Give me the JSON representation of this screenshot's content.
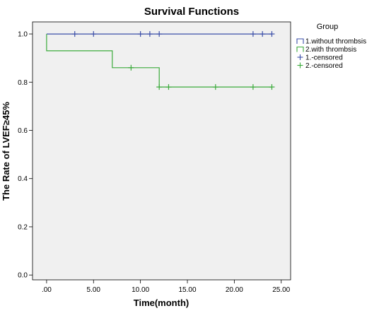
{
  "chart_data": {
    "type": "line",
    "step": true,
    "title": "Survival Functions",
    "xlabel": "Time(month)",
    "ylabel": "The Rate of LVEF≥45%",
    "xlim": [
      -1.5,
      26
    ],
    "ylim": [
      -0.02,
      1.05
    ],
    "xticks": [
      0,
      5,
      10,
      15,
      20,
      25
    ],
    "xtick_labels": [
      ".00",
      "5.00",
      "10.00",
      "15.00",
      "20.00",
      "25.00"
    ],
    "yticks": [
      0,
      0.2,
      0.4,
      0.6,
      0.8,
      1.0
    ],
    "ytick_labels": [
      "0.0",
      "0.2",
      "0.4",
      "0.6",
      "0.8",
      "1.0"
    ],
    "grid": false,
    "plot_background": "#f0f0f0",
    "legend": {
      "title": "Group",
      "placement": "right",
      "entries": [
        "1.without thrombsis",
        "2.with thrombsis",
        "1.-censored",
        "2.-censored"
      ]
    },
    "series": [
      {
        "name": "1.without thrombsis",
        "color": "#3b4fa8",
        "steps": [
          [
            0,
            1.0
          ],
          [
            24,
            1.0
          ]
        ],
        "censored_name": "1.-censored",
        "censored": [
          [
            3,
            1.0
          ],
          [
            5,
            1.0
          ],
          [
            10,
            1.0
          ],
          [
            11,
            1.0
          ],
          [
            12,
            1.0
          ],
          [
            22,
            1.0
          ],
          [
            23,
            1.0
          ],
          [
            24,
            1.0
          ]
        ]
      },
      {
        "name": "2.with thrombsis",
        "color": "#3aaa3a",
        "steps": [
          [
            0,
            1.0
          ],
          [
            0,
            0.93
          ],
          [
            7,
            0.93
          ],
          [
            7,
            0.86
          ],
          [
            12,
            0.86
          ],
          [
            12,
            0.78
          ],
          [
            24,
            0.78
          ]
        ],
        "censored_name": "2.-censored",
        "censored": [
          [
            9,
            0.86
          ],
          [
            12,
            0.78
          ],
          [
            13,
            0.78
          ],
          [
            18,
            0.78
          ],
          [
            22,
            0.78
          ],
          [
            24,
            0.78
          ]
        ]
      }
    ]
  }
}
